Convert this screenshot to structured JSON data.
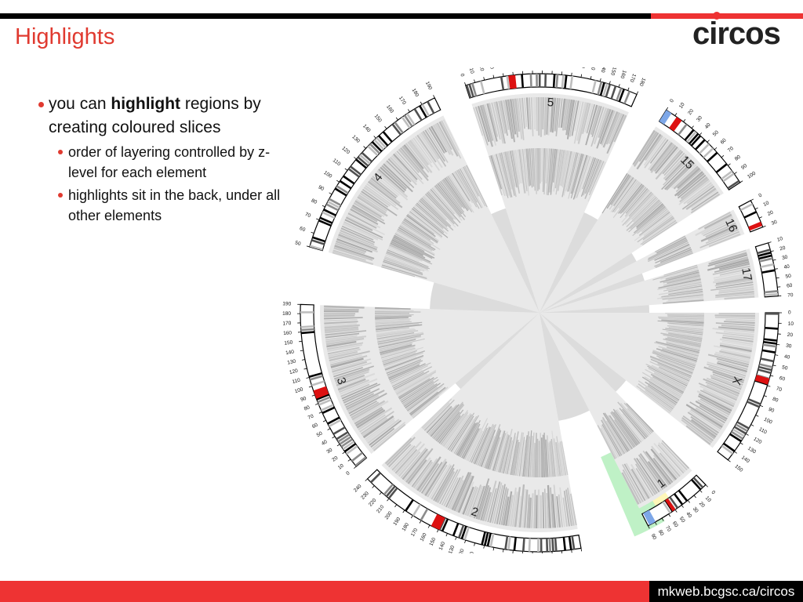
{
  "slide": {
    "title": "Highlights",
    "logo_text": "circos",
    "footer_url": "mkweb.bcgsc.ca/circos",
    "accent_color": "#e03a30"
  },
  "bullets": {
    "main_part1": "you can ",
    "main_bold": "highlight",
    "main_part2": " regions by creating coloured slices",
    "sub": [
      "order of layering controlled by z-level for each element",
      "highlights sit in the back, under all other elements"
    ]
  },
  "ideogram": {
    "chromosomes": [
      {
        "label": "1",
        "ticks": [
          "0",
          "10",
          "20",
          "30",
          "40",
          "50",
          "60",
          "70",
          "80",
          "90"
        ]
      },
      {
        "label": "2",
        "ticks": [
          "0",
          "10",
          "20",
          "30",
          "40",
          "50",
          "60",
          "70",
          "80",
          "90",
          "100",
          "110",
          "120",
          "130",
          "140",
          "150",
          "160",
          "170",
          "180",
          "190",
          "200",
          "210",
          "220",
          "230",
          "240"
        ]
      },
      {
        "label": "3",
        "ticks": [
          "0",
          "10",
          "20",
          "30",
          "40",
          "50",
          "60",
          "70",
          "80",
          "90",
          "100",
          "110",
          "120",
          "130",
          "140",
          "150",
          "160",
          "170",
          "180",
          "190"
        ]
      },
      {
        "label": "4",
        "ticks": [
          "50",
          "60",
          "70",
          "80",
          "90",
          "100",
          "110",
          "120",
          "130",
          "140",
          "150",
          "160",
          "170",
          "180",
          "190"
        ]
      },
      {
        "label": "5",
        "ticks": [
          "0",
          "10",
          "20",
          "30",
          "40",
          "50",
          "60",
          "70",
          "80",
          "90",
          "100",
          "110",
          "120",
          "130",
          "140",
          "150",
          "160",
          "170",
          "180"
        ]
      },
      {
        "label": "15",
        "ticks": [
          "0",
          "10",
          "20",
          "30",
          "40",
          "50",
          "60",
          "70",
          "80",
          "90",
          "100"
        ]
      },
      {
        "label": "16",
        "ticks": [
          "0",
          "10",
          "20",
          "30"
        ]
      },
      {
        "label": "17",
        "ticks": [
          "10",
          "20",
          "30",
          "40",
          "50",
          "60",
          "70"
        ]
      },
      {
        "label": "X",
        "ticks": [
          "0",
          "10",
          "20",
          "30",
          "40",
          "50",
          "60",
          "70",
          "80",
          "90",
          "100",
          "110",
          "120",
          "130",
          "140",
          "150"
        ]
      }
    ],
    "colors": {
      "track_gray": "#c8c8c8",
      "core_gray": "#dcdcdc",
      "highlight_yellow": "#fff6b0",
      "highlight_green": "#b8f0c0",
      "band_red": "#dd1111",
      "band_blue": "#7da7e8"
    }
  }
}
